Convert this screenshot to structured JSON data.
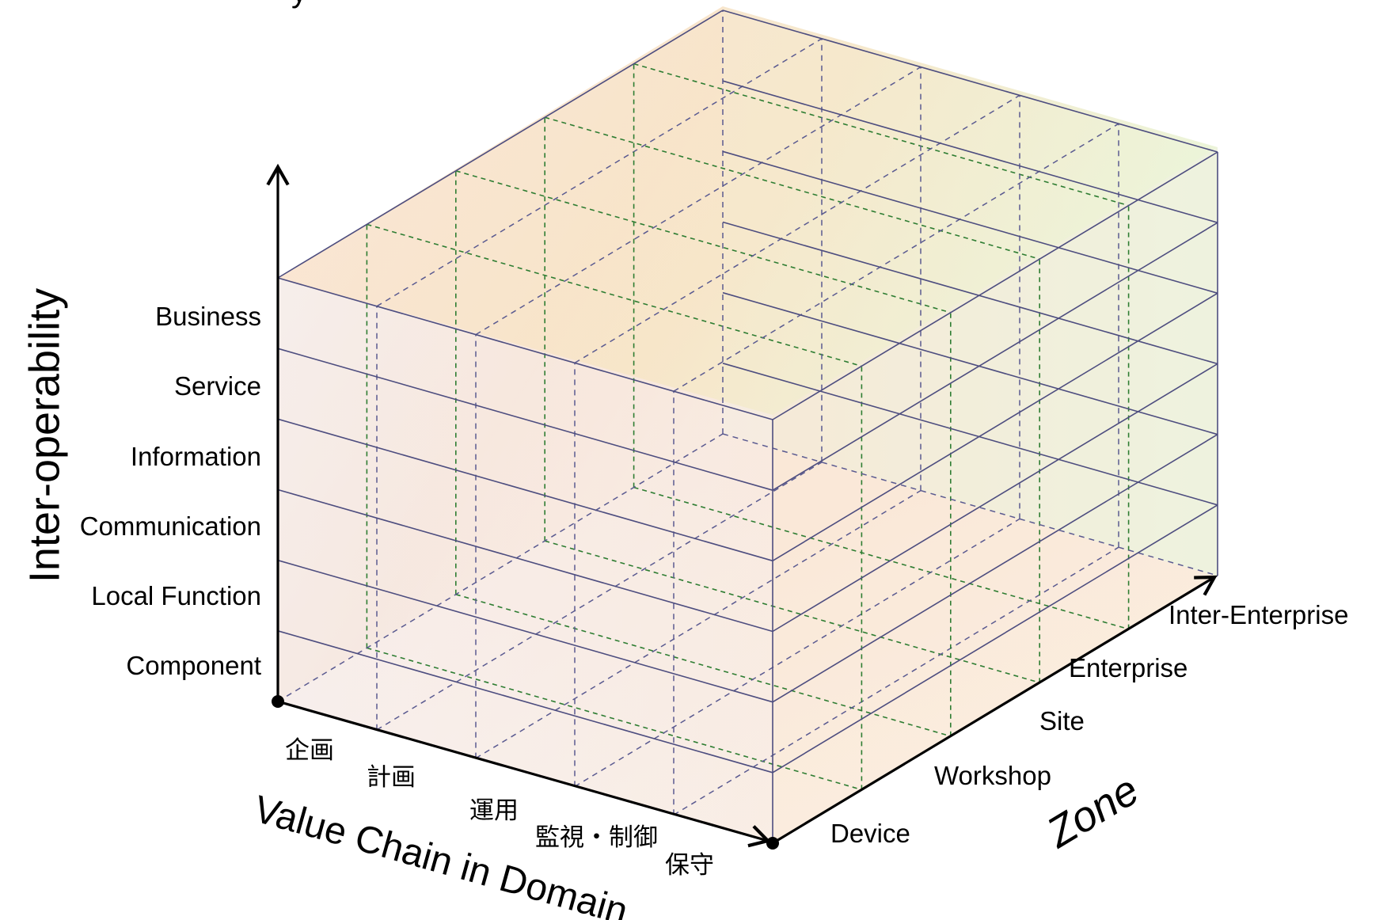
{
  "diagram": {
    "partial_title": "y",
    "vertical_axis": {
      "title": "Inter-operability",
      "layers": [
        "Component",
        "Local Function",
        "Communication",
        "Information",
        "Service",
        "Business"
      ]
    },
    "value_chain_axis": {
      "title": "Value Chain in Domain",
      "stages": [
        "企画",
        "計画",
        "運用",
        "監視・制御",
        "保守"
      ]
    },
    "zone_axis": {
      "title": "Zone",
      "zones": [
        "Device",
        "Workshop",
        "Site",
        "Enterprise",
        "Inter-Enterprise"
      ]
    },
    "colors": {
      "solid_grid": "#4d4d7f",
      "dashed_green": "#2e7d32",
      "dashed_blue": "#5a5a90",
      "face_warm": "#f8c8a0",
      "face_green": "#e6f7df",
      "face_left": "#eef0fa"
    }
  }
}
